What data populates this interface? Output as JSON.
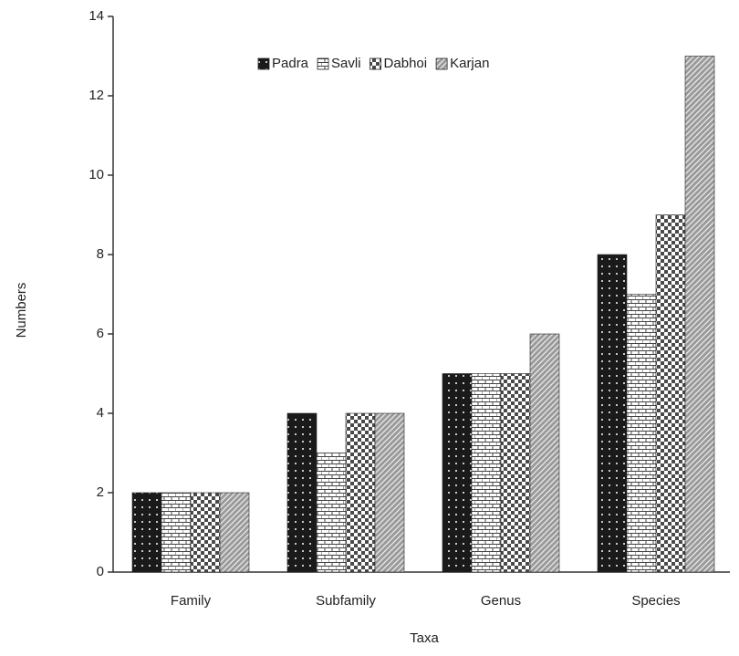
{
  "chart_data": {
    "type": "bar",
    "x_label": "Taxa",
    "y_label": "Numbers",
    "categories": [
      "Family",
      "Subfamily",
      "Genus",
      "Species"
    ],
    "series": [
      {
        "name": "Padra",
        "color": "#1a1a1a",
        "values": [
          2,
          4,
          5,
          8
        ]
      },
      {
        "name": "Savli",
        "color": "#ffffff",
        "values": [
          2,
          3,
          5,
          7
        ]
      },
      {
        "name": "Dabhoi",
        "color": "#4a4a4a",
        "values": [
          2,
          4,
          5,
          9
        ]
      },
      {
        "name": "Karjan",
        "color": "#9a9a9a",
        "values": [
          2,
          4,
          6,
          13
        ]
      }
    ],
    "ylim": [
      0,
      14
    ],
    "yticks": [
      0,
      2,
      4,
      6,
      8,
      10,
      12,
      14
    ],
    "grid": false,
    "legend": "top"
  }
}
